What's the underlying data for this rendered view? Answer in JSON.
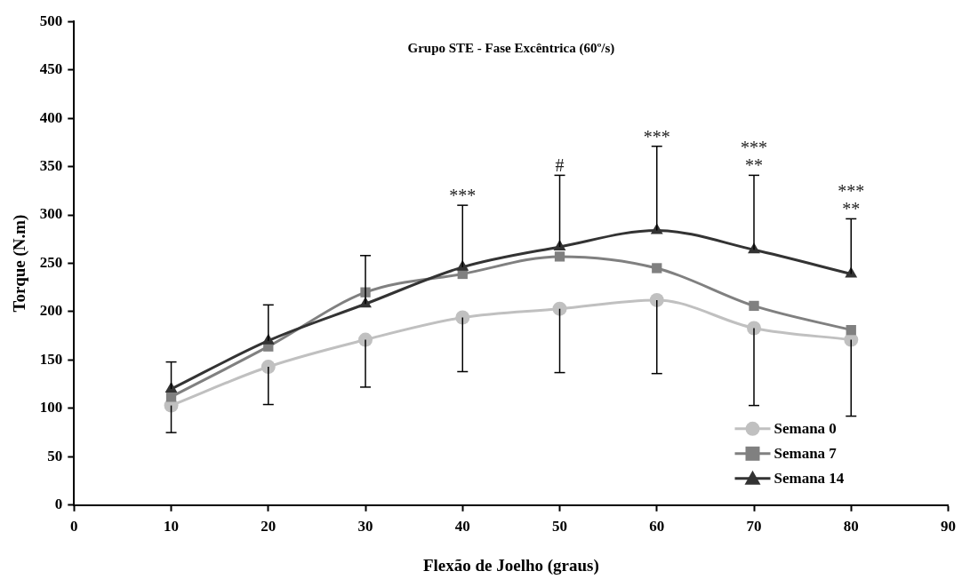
{
  "chart_data": {
    "type": "line",
    "title": "Grupo STE - Fase Excêntrica (60º/s)",
    "xlabel": "Flexão de Joelho (graus)",
    "ylabel": "Torque (N.m)",
    "x": [
      10,
      20,
      30,
      40,
      50,
      60,
      70,
      80
    ],
    "series": [
      {
        "name": "Semana 0",
        "color": "#c0c0c0",
        "marker": "circle",
        "values": [
          103,
          143,
          171,
          194,
          203,
          212,
          183,
          171
        ],
        "errors": [
          [
            75,
            103
          ],
          [
            104,
            143
          ],
          [
            122,
            171
          ],
          [
            138,
            194
          ],
          [
            137,
            203
          ],
          [
            136,
            212
          ],
          [
            103,
            183
          ],
          [
            92,
            171
          ]
        ]
      },
      {
        "name": "Semana 7",
        "color": "#808080",
        "marker": "square",
        "values": [
          112,
          164,
          220,
          239,
          257,
          245,
          206,
          181
        ]
      },
      {
        "name": "Semana 14",
        "color": "#333333",
        "marker": "triangle",
        "values": [
          120,
          170,
          208,
          246,
          267,
          284,
          264,
          239
        ],
        "errors": [
          [
            120,
            148
          ],
          [
            170,
            207
          ],
          [
            208,
            258
          ],
          [
            246,
            310
          ],
          [
            267,
            341
          ],
          [
            284,
            371
          ],
          [
            264,
            341
          ],
          [
            239,
            296
          ]
        ]
      }
    ],
    "xlim": [
      0,
      90
    ],
    "xticks": [
      0,
      10,
      20,
      30,
      40,
      50,
      60,
      70,
      80,
      90
    ],
    "ylim": [
      0,
      500
    ],
    "yticks": [
      0,
      50,
      100,
      150,
      200,
      250,
      300,
      350,
      400,
      450,
      500
    ],
    "grid": false,
    "legend": "bottom right",
    "line_style": "solid",
    "annotations": [
      {
        "text": "***",
        "x": 40,
        "y": 310
      },
      {
        "text": "#",
        "x": 50,
        "y": 341
      },
      {
        "text": "***",
        "x": 60,
        "y": 371
      },
      {
        "text": "***",
        "x": 70,
        "y": 341
      },
      {
        "text": "**",
        "x": 70,
        "y": 341
      },
      {
        "text": "***",
        "x": 80,
        "y": 296
      },
      {
        "text": "**",
        "x": 80,
        "y": 296
      }
    ]
  }
}
